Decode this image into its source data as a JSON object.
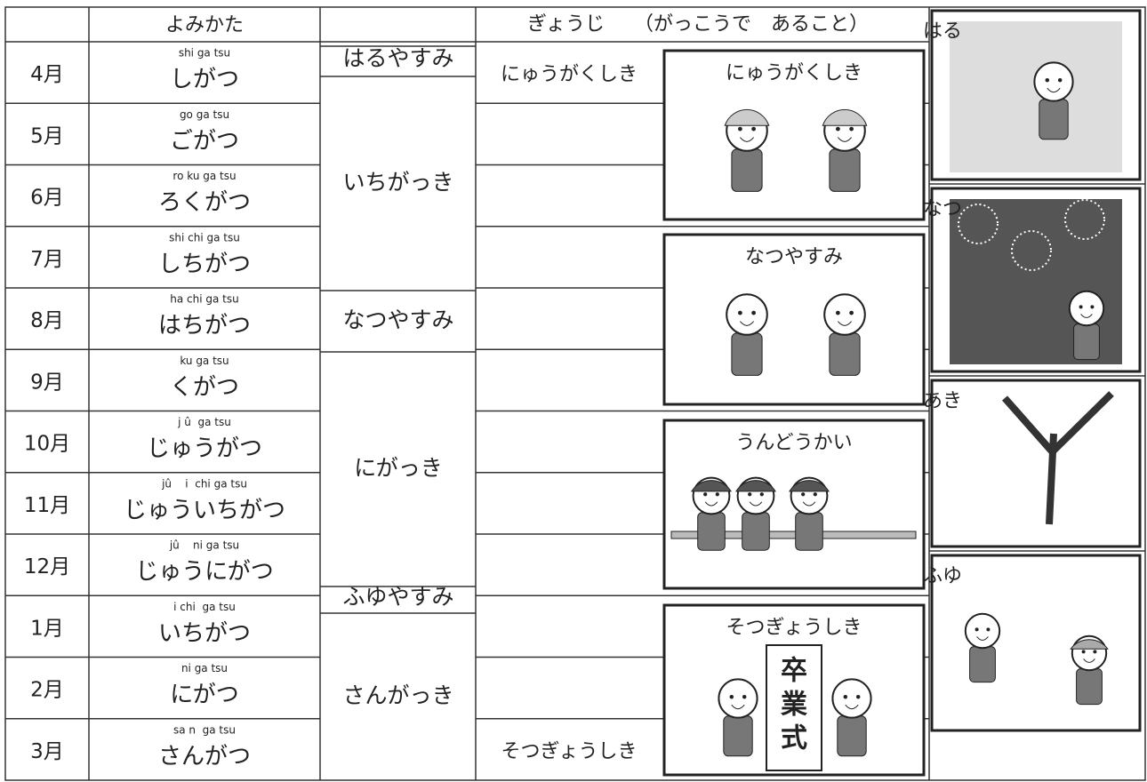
{
  "header": {
    "reading": "よみかた",
    "events": "ぎょうじ　　（がっこうで　あること）"
  },
  "months": [
    {
      "month": "4月",
      "romaji": "shi ga tsu",
      "kana": "しがつ"
    },
    {
      "month": "5月",
      "romaji": "go ga tsu",
      "kana": "ごがつ"
    },
    {
      "month": "6月",
      "romaji": "ro ku ga tsu",
      "kana": "ろくがつ"
    },
    {
      "month": "7月",
      "romaji": "shi chi ga tsu",
      "kana": "しちがつ"
    },
    {
      "month": "8月",
      "romaji": "ha chi ga tsu",
      "kana": "はちがつ"
    },
    {
      "month": "9月",
      "romaji": "ku ga tsu",
      "kana": "くがつ"
    },
    {
      "month": "10月",
      "romaji": "j û  ga tsu",
      "kana": "じゅうがつ"
    },
    {
      "month": "11月",
      "romaji": "jû    i  chi ga tsu",
      "kana": "じゅういちがつ"
    },
    {
      "month": "12月",
      "romaji": "jû    ni ga tsu",
      "kana": "じゅうにがつ"
    },
    {
      "month": "1月",
      "romaji": "i chi  ga tsu",
      "kana": "いちがつ"
    },
    {
      "month": "2月",
      "romaji": "ni ga tsu",
      "kana": "にがつ"
    },
    {
      "month": "3月",
      "romaji": "sa n  ga tsu",
      "kana": "さんがつ"
    }
  ],
  "terms": [
    "はるやすみ",
    "いちがっき",
    "なつやすみ",
    "にがっき",
    "ふゆやすみ",
    "さんがっき"
  ],
  "events": [
    "にゅうがくしき",
    "そつぎょうしき"
  ],
  "pictures": [
    {
      "caption": "にゅうがくしき"
    },
    {
      "caption": "なつやすみ"
    },
    {
      "caption": "うんどうかい"
    },
    {
      "caption": "そつぎょうしき",
      "sign": [
        "卒",
        "業",
        "式"
      ]
    }
  ],
  "seasons": [
    "はる",
    "なつ",
    "あき",
    "ふゆ"
  ]
}
